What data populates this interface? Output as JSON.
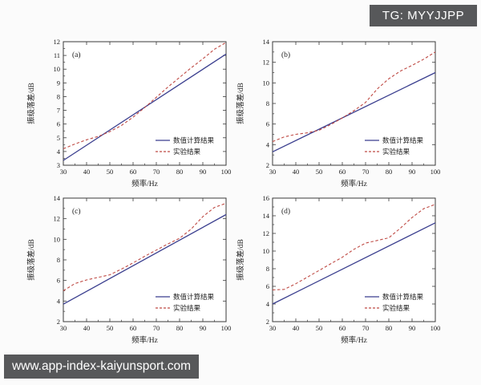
{
  "overlays": {
    "top_right_badge": "TG: MYYJJPP",
    "bottom_left_badge": "www.app-index-kaiyunsport.com"
  },
  "colors": {
    "numeric_line": "#3b3f8f",
    "experiment_line": "#bf4a44",
    "axis": "#3a3a3a",
    "badge_bg": "#57585a",
    "badge_text": "#ffffff"
  },
  "legend": {
    "numeric_label": "数值计算结果",
    "experiment_label": "实验结果",
    "position": "lower right"
  },
  "chart_data": [
    {
      "type": "line",
      "panel": "(a)",
      "xlabel": "频率/Hz",
      "ylabel": "振级落差/dB",
      "xlim": [
        30,
        100
      ],
      "ylim": [
        3,
        12
      ],
      "xticks": [
        30,
        40,
        50,
        60,
        70,
        80,
        90,
        100
      ],
      "yticks": [
        3,
        4,
        5,
        6,
        7,
        8,
        9,
        10,
        11,
        12
      ],
      "grid": false,
      "legend_position": "lower right",
      "series": [
        {
          "name": "数值计算结果",
          "style": "solid",
          "color": "#3b3f8f",
          "x": [
            30,
            100
          ],
          "y": [
            3.35,
            11.1
          ]
        },
        {
          "name": "实验结果",
          "style": "dashed",
          "color": "#bf4a44",
          "x": [
            30,
            35,
            40,
            45,
            50,
            55,
            60,
            65,
            70,
            75,
            80,
            85,
            90,
            95,
            100
          ],
          "y": [
            4.2,
            4.55,
            4.85,
            5.1,
            5.45,
            5.9,
            6.5,
            7.2,
            7.95,
            8.7,
            9.4,
            10.1,
            10.75,
            11.45,
            11.95
          ]
        }
      ]
    },
    {
      "type": "line",
      "panel": "(b)",
      "xlabel": "频率/Hz",
      "ylabel": "振级落差/dB",
      "xlim": [
        30,
        100
      ],
      "ylim": [
        2,
        14
      ],
      "xticks": [
        30,
        40,
        50,
        60,
        70,
        80,
        90,
        100
      ],
      "yticks": [
        2,
        4,
        6,
        8,
        10,
        12,
        14
      ],
      "grid": false,
      "legend_position": "lower right",
      "series": [
        {
          "name": "数值计算结果",
          "style": "solid",
          "color": "#3b3f8f",
          "x": [
            30,
            100
          ],
          "y": [
            3.3,
            11.0
          ]
        },
        {
          "name": "实验结果",
          "style": "dashed",
          "color": "#bf4a44",
          "x": [
            30,
            35,
            40,
            45,
            50,
            55,
            60,
            65,
            70,
            75,
            80,
            85,
            90,
            95,
            100
          ],
          "y": [
            4.3,
            4.75,
            5.0,
            5.15,
            5.4,
            5.95,
            6.6,
            7.3,
            8.1,
            9.4,
            10.4,
            11.15,
            11.7,
            12.3,
            13.0
          ]
        }
      ]
    },
    {
      "type": "line",
      "panel": "(c)",
      "xlabel": "频率/Hz",
      "ylabel": "振级落差/dB",
      "xlim": [
        30,
        100
      ],
      "ylim": [
        2,
        14
      ],
      "xticks": [
        30,
        40,
        50,
        60,
        70,
        80,
        90,
        100
      ],
      "yticks": [
        2,
        4,
        6,
        8,
        10,
        12,
        14
      ],
      "grid": false,
      "legend_position": "lower right",
      "series": [
        {
          "name": "数值计算结果",
          "style": "solid",
          "color": "#3b3f8f",
          "x": [
            30,
            100
          ],
          "y": [
            3.7,
            12.4
          ]
        },
        {
          "name": "实验结果",
          "style": "dashed",
          "color": "#bf4a44",
          "x": [
            30,
            35,
            40,
            45,
            50,
            55,
            60,
            65,
            70,
            75,
            80,
            85,
            90,
            95,
            100
          ],
          "y": [
            5.0,
            5.7,
            6.05,
            6.3,
            6.55,
            7.1,
            7.7,
            8.35,
            8.95,
            9.55,
            10.1,
            11.0,
            12.2,
            13.1,
            13.5
          ]
        }
      ]
    },
    {
      "type": "line",
      "panel": "(d)",
      "xlabel": "频率/Hz",
      "ylabel": "振级落差/dB",
      "xlim": [
        30,
        100
      ],
      "ylim": [
        2,
        16
      ],
      "xticks": [
        30,
        40,
        50,
        60,
        70,
        80,
        90,
        100
      ],
      "yticks": [
        2,
        4,
        6,
        8,
        10,
        12,
        14,
        16
      ],
      "grid": false,
      "legend_position": "lower right",
      "series": [
        {
          "name": "数值计算结果",
          "style": "solid",
          "color": "#3b3f8f",
          "x": [
            30,
            100
          ],
          "y": [
            4.0,
            13.2
          ]
        },
        {
          "name": "实验结果",
          "style": "dashed",
          "color": "#bf4a44",
          "x": [
            30,
            35,
            40,
            45,
            50,
            55,
            60,
            65,
            70,
            75,
            80,
            85,
            90,
            95,
            100
          ],
          "y": [
            5.6,
            5.65,
            6.3,
            7.05,
            7.8,
            8.55,
            9.3,
            10.2,
            10.9,
            11.2,
            11.5,
            12.6,
            13.8,
            14.8,
            15.3
          ]
        }
      ]
    }
  ]
}
